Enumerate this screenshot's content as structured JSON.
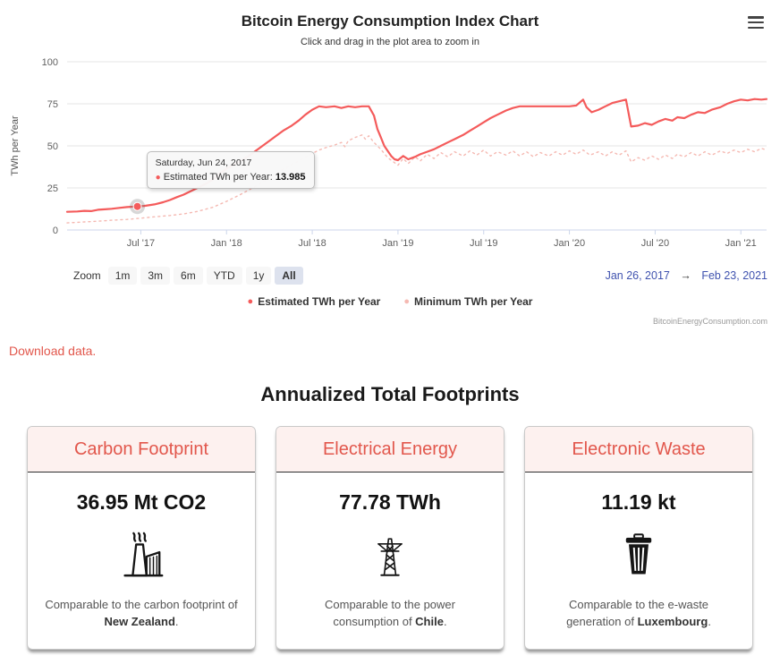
{
  "page": {
    "title": "Bitcoin Energy Consumption Index Chart",
    "subtitle": "Click and drag in the plot area to zoom in",
    "watermark": "BitcoinEnergyConsumption.com",
    "download_link": "Download data.",
    "section_title": "Annualized Total Footprints"
  },
  "colors": {
    "accent_red": "#e2574c",
    "estimated_line": "#f45b5b",
    "minimum_line": "#f5b9b2",
    "card_header_bg": "#fdf1ef",
    "date_blue": "#4053af"
  },
  "range_selector": {
    "zoom_label": "Zoom",
    "buttons": [
      "1m",
      "3m",
      "6m",
      "YTD",
      "1y",
      "All"
    ],
    "selected": "All",
    "from": "Jan 26, 2017",
    "arrow": "→",
    "to": "Feb 23, 2021"
  },
  "chart_data": {
    "type": "line",
    "title": "Bitcoin Energy Consumption Index Chart",
    "ylabel": "TWh per Year",
    "ylim": [
      0,
      100
    ],
    "yticks": [
      0,
      25,
      50,
      75,
      100
    ],
    "xlim": [
      2017.07,
      2021.15
    ],
    "xticks": [
      {
        "pos": 2017.5,
        "label": "Jul '17"
      },
      {
        "pos": 2018.0,
        "label": "Jan '18"
      },
      {
        "pos": 2018.5,
        "label": "Jul '18"
      },
      {
        "pos": 2019.0,
        "label": "Jan '19"
      },
      {
        "pos": 2019.5,
        "label": "Jul '19"
      },
      {
        "pos": 2020.0,
        "label": "Jan '20"
      },
      {
        "pos": 2020.5,
        "label": "Jul '20"
      },
      {
        "pos": 2021.0,
        "label": "Jan '21"
      }
    ],
    "grid": true,
    "legend_position": "bottom",
    "tooltip": {
      "date": "Saturday, Jun 24, 2017",
      "series": "Estimated TWh per Year",
      "value": "13.985"
    },
    "marker": {
      "x": 2017.48,
      "y": 13.985
    },
    "series": [
      {
        "name": "Estimated TWh per Year",
        "color": "#f45b5b",
        "dash": "solid",
        "width": 2.2,
        "points": [
          [
            2017.07,
            10.8
          ],
          [
            2017.13,
            11.0
          ],
          [
            2017.17,
            11.4
          ],
          [
            2017.21,
            11.2
          ],
          [
            2017.25,
            12.0
          ],
          [
            2017.29,
            12.3
          ],
          [
            2017.33,
            12.6
          ],
          [
            2017.38,
            13.2
          ],
          [
            2017.42,
            13.6
          ],
          [
            2017.48,
            13.985
          ],
          [
            2017.52,
            14.3
          ],
          [
            2017.58,
            15.2
          ],
          [
            2017.63,
            16.5
          ],
          [
            2017.67,
            17.8
          ],
          [
            2017.71,
            19.5
          ],
          [
            2017.75,
            21.0
          ],
          [
            2017.79,
            23.0
          ],
          [
            2017.83,
            25.0
          ],
          [
            2017.88,
            27.5
          ],
          [
            2017.92,
            30.0
          ],
          [
            2017.96,
            33.5
          ],
          [
            2018.0,
            36.5
          ],
          [
            2018.04,
            38.5
          ],
          [
            2018.08,
            41.0
          ],
          [
            2018.13,
            44.0
          ],
          [
            2018.17,
            47.0
          ],
          [
            2018.21,
            50.0
          ],
          [
            2018.25,
            53.0
          ],
          [
            2018.29,
            56.0
          ],
          [
            2018.33,
            59.0
          ],
          [
            2018.38,
            62.0
          ],
          [
            2018.42,
            65.0
          ],
          [
            2018.46,
            68.5
          ],
          [
            2018.5,
            71.5
          ],
          [
            2018.54,
            73.5
          ],
          [
            2018.58,
            73.0
          ],
          [
            2018.63,
            73.5
          ],
          [
            2018.67,
            72.5
          ],
          [
            2018.71,
            73.5
          ],
          [
            2018.75,
            73.0
          ],
          [
            2018.79,
            73.5
          ],
          [
            2018.83,
            73.5
          ],
          [
            2018.86,
            68.0
          ],
          [
            2018.88,
            60.0
          ],
          [
            2018.9,
            55.0
          ],
          [
            2018.92,
            50.0
          ],
          [
            2018.94,
            47.0
          ],
          [
            2018.96,
            44.0
          ],
          [
            2018.98,
            42.0
          ],
          [
            2019.0,
            41.5
          ],
          [
            2019.03,
            44.0
          ],
          [
            2019.06,
            42.0
          ],
          [
            2019.1,
            43.5
          ],
          [
            2019.13,
            45.0
          ],
          [
            2019.17,
            46.5
          ],
          [
            2019.21,
            48.0
          ],
          [
            2019.25,
            50.0
          ],
          [
            2019.29,
            52.0
          ],
          [
            2019.33,
            54.0
          ],
          [
            2019.38,
            56.5
          ],
          [
            2019.42,
            59.0
          ],
          [
            2019.46,
            61.5
          ],
          [
            2019.5,
            64.0
          ],
          [
            2019.54,
            66.5
          ],
          [
            2019.58,
            68.5
          ],
          [
            2019.63,
            71.0
          ],
          [
            2019.67,
            72.5
          ],
          [
            2019.71,
            73.5
          ],
          [
            2019.75,
            73.5
          ],
          [
            2019.79,
            73.5
          ],
          [
            2019.83,
            73.5
          ],
          [
            2019.88,
            73.5
          ],
          [
            2019.92,
            73.5
          ],
          [
            2019.96,
            73.5
          ],
          [
            2020.0,
            73.5
          ],
          [
            2020.04,
            74.0
          ],
          [
            2020.08,
            77.5
          ],
          [
            2020.1,
            73.0
          ],
          [
            2020.13,
            70.0
          ],
          [
            2020.17,
            71.5
          ],
          [
            2020.21,
            73.5
          ],
          [
            2020.25,
            75.5
          ],
          [
            2020.29,
            76.5
          ],
          [
            2020.33,
            77.5
          ],
          [
            2020.36,
            61.5
          ],
          [
            2020.4,
            62.0
          ],
          [
            2020.44,
            63.5
          ],
          [
            2020.48,
            62.5
          ],
          [
            2020.52,
            64.5
          ],
          [
            2020.56,
            66.0
          ],
          [
            2020.6,
            65.0
          ],
          [
            2020.63,
            67.0
          ],
          [
            2020.67,
            66.5
          ],
          [
            2020.71,
            68.5
          ],
          [
            2020.75,
            70.0
          ],
          [
            2020.79,
            69.5
          ],
          [
            2020.83,
            71.5
          ],
          [
            2020.88,
            73.0
          ],
          [
            2020.92,
            75.0
          ],
          [
            2020.96,
            76.5
          ],
          [
            2021.0,
            77.5
          ],
          [
            2021.04,
            77.0
          ],
          [
            2021.08,
            77.8
          ],
          [
            2021.12,
            77.5
          ],
          [
            2021.15,
            77.8
          ]
        ]
      },
      {
        "name": "Minimum TWh per Year",
        "color": "#f5b9b2",
        "dash": "dot",
        "width": 1.4,
        "points": [
          [
            2017.07,
            4.2
          ],
          [
            2017.17,
            4.8
          ],
          [
            2017.25,
            5.2
          ],
          [
            2017.33,
            5.8
          ],
          [
            2017.42,
            6.3
          ],
          [
            2017.5,
            7.0
          ],
          [
            2017.58,
            7.8
          ],
          [
            2017.67,
            8.6
          ],
          [
            2017.75,
            9.6
          ],
          [
            2017.83,
            11.0
          ],
          [
            2017.92,
            13.5
          ],
          [
            2018.0,
            17.0
          ],
          [
            2018.08,
            21.0
          ],
          [
            2018.17,
            26.0
          ],
          [
            2018.25,
            31.0
          ],
          [
            2018.33,
            36.0
          ],
          [
            2018.42,
            41.0
          ],
          [
            2018.5,
            45.5
          ],
          [
            2018.54,
            47.5
          ],
          [
            2018.58,
            49.0
          ],
          [
            2018.63,
            50.5
          ],
          [
            2018.67,
            52.0
          ],
          [
            2018.69,
            49.5
          ],
          [
            2018.71,
            53.0
          ],
          [
            2018.75,
            55.0
          ],
          [
            2018.79,
            56.5
          ],
          [
            2018.81,
            54.0
          ],
          [
            2018.83,
            56.0
          ],
          [
            2018.86,
            52.0
          ],
          [
            2018.9,
            48.0
          ],
          [
            2018.94,
            43.0
          ],
          [
            2018.98,
            40.0
          ],
          [
            2019.0,
            38.5
          ],
          [
            2019.03,
            42.5
          ],
          [
            2019.06,
            39.5
          ],
          [
            2019.1,
            43.5
          ],
          [
            2019.13,
            41.0
          ],
          [
            2019.17,
            45.0
          ],
          [
            2019.21,
            42.5
          ],
          [
            2019.25,
            46.0
          ],
          [
            2019.29,
            43.5
          ],
          [
            2019.33,
            46.5
          ],
          [
            2019.38,
            44.0
          ],
          [
            2019.42,
            47.0
          ],
          [
            2019.46,
            44.5
          ],
          [
            2019.5,
            47.5
          ],
          [
            2019.54,
            44.0
          ],
          [
            2019.58,
            46.5
          ],
          [
            2019.63,
            44.5
          ],
          [
            2019.67,
            47.0
          ],
          [
            2019.71,
            44.0
          ],
          [
            2019.75,
            46.5
          ],
          [
            2019.79,
            43.5
          ],
          [
            2019.83,
            46.0
          ],
          [
            2019.88,
            44.0
          ],
          [
            2019.92,
            46.5
          ],
          [
            2019.96,
            44.5
          ],
          [
            2020.0,
            47.0
          ],
          [
            2020.04,
            45.0
          ],
          [
            2020.08,
            47.5
          ],
          [
            2020.12,
            44.5
          ],
          [
            2020.17,
            46.5
          ],
          [
            2020.21,
            44.0
          ],
          [
            2020.25,
            46.5
          ],
          [
            2020.29,
            44.5
          ],
          [
            2020.33,
            47.0
          ],
          [
            2020.36,
            40.5
          ],
          [
            2020.4,
            43.0
          ],
          [
            2020.44,
            41.5
          ],
          [
            2020.48,
            44.0
          ],
          [
            2020.52,
            42.0
          ],
          [
            2020.56,
            44.5
          ],
          [
            2020.6,
            42.5
          ],
          [
            2020.63,
            45.0
          ],
          [
            2020.67,
            43.5
          ],
          [
            2020.71,
            46.0
          ],
          [
            2020.75,
            44.0
          ],
          [
            2020.79,
            46.5
          ],
          [
            2020.83,
            44.5
          ],
          [
            2020.88,
            47.0
          ],
          [
            2020.92,
            45.5
          ],
          [
            2020.96,
            47.5
          ],
          [
            2021.0,
            46.0
          ],
          [
            2021.04,
            48.0
          ],
          [
            2021.08,
            46.5
          ],
          [
            2021.12,
            48.5
          ],
          [
            2021.15,
            47.5
          ]
        ]
      }
    ]
  },
  "cards": [
    {
      "title": "Carbon Footprint",
      "value": "36.95 Mt CO2",
      "icon": "factory-icon",
      "desc_before": "Comparable to the carbon footprint of ",
      "bold": "New Zealand",
      "desc_after": "."
    },
    {
      "title": "Electrical Energy",
      "value": "77.78 TWh",
      "icon": "power-tower-icon",
      "desc_before": "Comparable to the power consumption of ",
      "bold": "Chile",
      "desc_after": "."
    },
    {
      "title": "Electronic Waste",
      "value": "11.19 kt",
      "icon": "trash-icon",
      "desc_before": "Comparable to the e-waste generation of ",
      "bold": "Luxembourg",
      "desc_after": "."
    }
  ]
}
